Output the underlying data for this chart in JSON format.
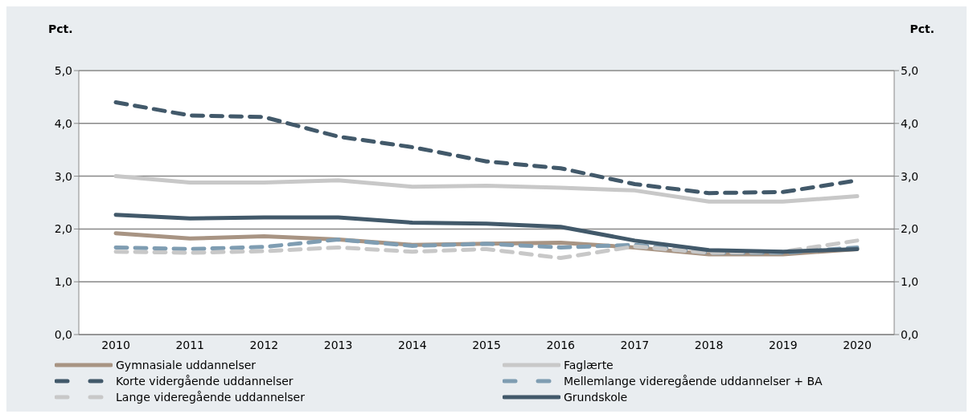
{
  "chart_data": {
    "type": "line",
    "ylabel": "Pct.",
    "y2label": "Pct.",
    "categories": [
      "2010",
      "2011",
      "2012",
      "2013",
      "2014",
      "2015",
      "2016",
      "2017",
      "2018",
      "2019",
      "2020"
    ],
    "series": [
      {
        "name": "Gymnasiale uddannelser",
        "color": "#a89483",
        "line_style": "solid",
        "values": [
          1.92,
          1.82,
          1.86,
          1.8,
          1.7,
          1.72,
          1.74,
          1.65,
          1.52,
          1.52,
          1.62
        ]
      },
      {
        "name": "Faglærte",
        "color": "#c8c8c8",
        "line_style": "solid",
        "values": [
          3.0,
          2.88,
          2.88,
          2.92,
          2.8,
          2.82,
          2.78,
          2.73,
          2.52,
          2.52,
          2.62
        ]
      },
      {
        "name": "Korte vidergående uddannelser",
        "color": "#42596a",
        "line_style": "dashed",
        "values": [
          4.4,
          4.15,
          4.12,
          3.75,
          3.55,
          3.28,
          3.15,
          2.85,
          2.68,
          2.7,
          2.92
        ]
      },
      {
        "name": "Mellemlange videregående uddannelser + BA",
        "color": "#7f9db2",
        "line_style": "dashed",
        "values": [
          1.65,
          1.62,
          1.66,
          1.8,
          1.68,
          1.72,
          1.65,
          1.7,
          1.55,
          1.55,
          1.65
        ]
      },
      {
        "name": "Lange videregående uddannelser",
        "color": "#c8c8c8",
        "line_style": "dashed",
        "values": [
          1.57,
          1.55,
          1.58,
          1.65,
          1.57,
          1.62,
          1.45,
          1.67,
          1.55,
          1.57,
          1.78
        ]
      },
      {
        "name": "Grundskole",
        "color": "#42596a",
        "line_style": "solid",
        "values": [
          2.27,
          2.2,
          2.22,
          2.22,
          2.12,
          2.1,
          2.04,
          1.78,
          1.6,
          1.57,
          1.62
        ]
      }
    ],
    "ylim": [
      0,
      5
    ],
    "yticks": [
      {
        "value": 0,
        "label": "0,0"
      },
      {
        "value": 1,
        "label": "1,0"
      },
      {
        "value": 2,
        "label": "2,0"
      },
      {
        "value": 3,
        "label": "3,0"
      },
      {
        "value": 4,
        "label": "4,0"
      },
      {
        "value": 5,
        "label": "5,0"
      }
    ],
    "y2lim": [
      0,
      5
    ],
    "y2ticks": [
      {
        "value": 0,
        "label": "0,0"
      },
      {
        "value": 1,
        "label": "1,0"
      },
      {
        "value": 2,
        "label": "2,0"
      },
      {
        "value": 3,
        "label": "3,0"
      },
      {
        "value": 4,
        "label": "4,0"
      },
      {
        "value": 5,
        "label": "5,0"
      }
    ],
    "grid": "y",
    "legend": "bottom",
    "marker": "none"
  }
}
